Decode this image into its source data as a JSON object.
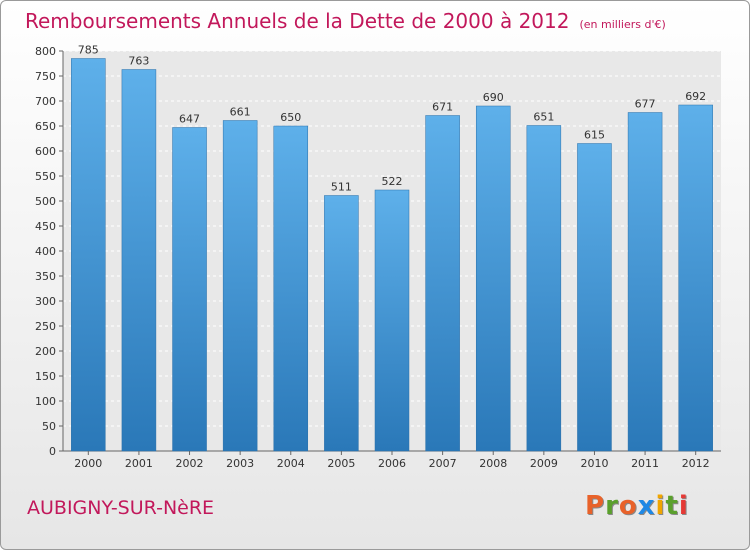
{
  "header": {
    "title": "Remboursements Annuels de la Dette de 2000 à 2012",
    "unit": "(en milliers d'€)"
  },
  "footer": {
    "commune": "AUBIGNY-SUR-NèRE",
    "logo_text": "Proxiti",
    "logo_colors": [
      "#e8622a",
      "#5aa02c",
      "#e8622a",
      "#1e88e5",
      "#f0a500",
      "#5aa02c",
      "#e53935"
    ]
  },
  "colors": {
    "bar_top": "#5eb0ea",
    "bar_bottom": "#2a78b8",
    "title": "#c2185b"
  },
  "chart_data": {
    "type": "bar",
    "title": "Remboursements Annuels de la Dette de 2000 à 2012",
    "subtitle": "(en milliers d'€)",
    "xlabel": "",
    "ylabel": "",
    "categories": [
      "2000",
      "2001",
      "2002",
      "2003",
      "2004",
      "2005",
      "2006",
      "2007",
      "2008",
      "2009",
      "2010",
      "2011",
      "2012"
    ],
    "values": [
      785,
      763,
      647,
      661,
      650,
      511,
      522,
      671,
      690,
      651,
      615,
      677,
      692
    ],
    "ylim": [
      0,
      800
    ],
    "yticks": [
      0,
      50,
      100,
      150,
      200,
      250,
      300,
      350,
      400,
      450,
      500,
      550,
      600,
      650,
      700,
      750,
      800
    ],
    "grid": true,
    "legend": "none"
  }
}
